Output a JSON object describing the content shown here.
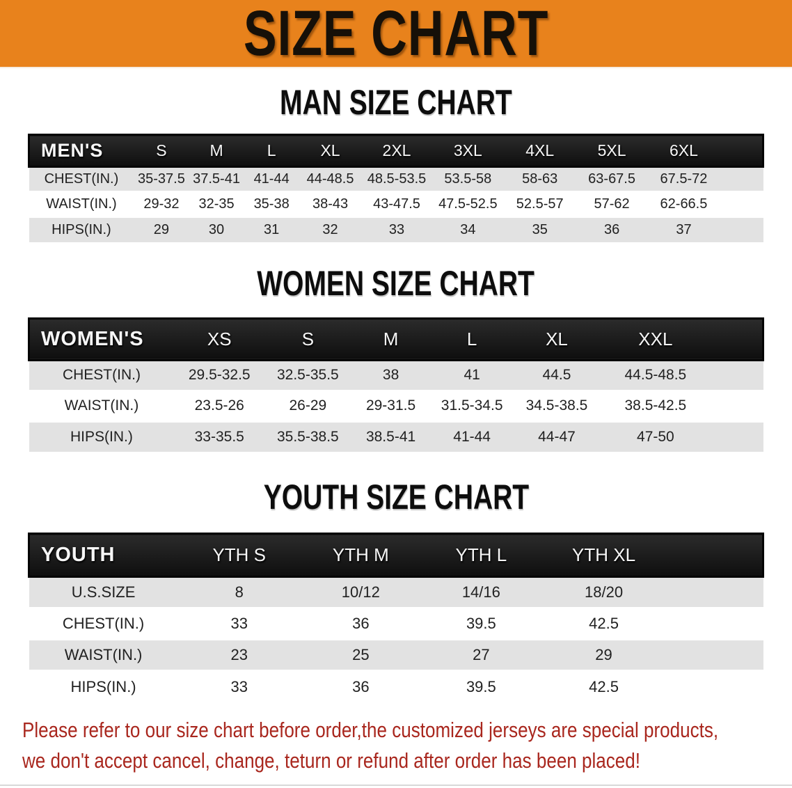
{
  "banner": {
    "title": "SIZE CHART"
  },
  "colors": {
    "banner_bg": "#E8821C",
    "table_header_bg": "#181818",
    "row_alt_bg": "#E2E2E2",
    "note_color": "#A9271E"
  },
  "sections": [
    {
      "id": "men",
      "title": "MAN SIZE CHART",
      "corner_label": "MEN'S",
      "columns": [
        "S",
        "M",
        "L",
        "XL",
        "2XL",
        "3XL",
        "4XL",
        "5XL",
        "6XL"
      ],
      "rows": [
        {
          "label": "CHEST(IN.)",
          "values": [
            "35-37.5",
            "37.5-41",
            "41-44",
            "44-48.5",
            "48.5-53.5",
            "53.5-58",
            "58-63",
            "63-67.5",
            "67.5-72"
          ]
        },
        {
          "label": "WAIST(IN.)",
          "values": [
            "29-32",
            "32-35",
            "35-38",
            "38-43",
            "43-47.5",
            "47.5-52.5",
            "52.5-57",
            "57-62",
            "62-66.5"
          ]
        },
        {
          "label": "HIPS(IN.)",
          "values": [
            "29",
            "30",
            "31",
            "32",
            "33",
            "34",
            "35",
            "36",
            "37"
          ]
        }
      ]
    },
    {
      "id": "women",
      "title": "WOMEN SIZE CHART",
      "corner_label": "WOMEN'S",
      "columns": [
        "XS",
        "S",
        "M",
        "L",
        "XL",
        "XXL"
      ],
      "rows": [
        {
          "label": "CHEST(IN.)",
          "values": [
            "29.5-32.5",
            "32.5-35.5",
            "38",
            "41",
            "44.5",
            "44.5-48.5"
          ]
        },
        {
          "label": "WAIST(IN.)",
          "values": [
            "23.5-26",
            "26-29",
            "29-31.5",
            "31.5-34.5",
            "34.5-38.5",
            "38.5-42.5"
          ]
        },
        {
          "label": "HIPS(IN.)",
          "values": [
            "33-35.5",
            "35.5-38.5",
            "38.5-41",
            "41-44",
            "44-47",
            "47-50"
          ]
        }
      ]
    },
    {
      "id": "youth",
      "title": "YOUTH SIZE CHART",
      "corner_label": "YOUTH",
      "columns": [
        "YTH S",
        "YTH M",
        "YTH L",
        "YTH XL"
      ],
      "rows": [
        {
          "label": "U.S.SIZE",
          "values": [
            "8",
            "10/12",
            "14/16",
            "18/20"
          ]
        },
        {
          "label": "CHEST(IN.)",
          "values": [
            "33",
            "36",
            "39.5",
            "42.5"
          ]
        },
        {
          "label": "WAIST(IN.)",
          "values": [
            "23",
            "25",
            "27",
            "29"
          ]
        },
        {
          "label": "HIPS(IN.)",
          "values": [
            "33",
            "36",
            "39.5",
            "42.5"
          ]
        }
      ]
    }
  ],
  "note": {
    "line1": "Please refer to our size chart before order,the customized jerseys are special products,",
    "line2": "we don't accept cancel, change, teturn or refund after order has been placed!"
  }
}
